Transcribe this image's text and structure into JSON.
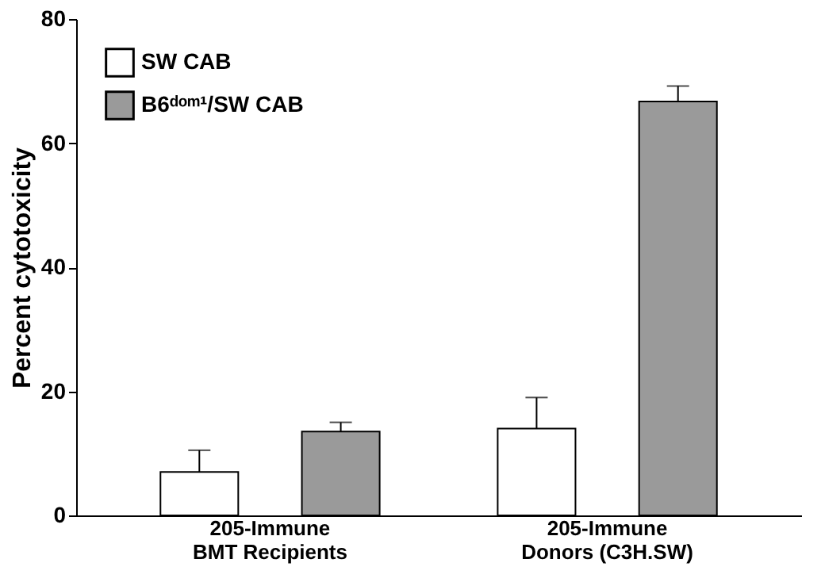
{
  "chart_data": {
    "type": "bar",
    "ylabel": "Percent cytotoxicity",
    "categories": [
      "205-Immune\nBMT Recipients",
      "205-Immune\nDonors (C3H.SW)"
    ],
    "series": [
      {
        "name": "SW CAB",
        "color": "#ffffff",
        "values": [
          7,
          14
        ],
        "errors": [
          3.5,
          5
        ]
      },
      {
        "name": "B6ᵈᵒᵐ¹/SW CAB",
        "color": "#9a9a9a",
        "values": [
          13.5,
          66.7
        ],
        "errors": [
          1.5,
          2.5
        ]
      }
    ],
    "ylim": [
      0,
      80
    ],
    "yticks": [
      0,
      20,
      40,
      60,
      80
    ],
    "grid": false,
    "legend": "top left"
  }
}
